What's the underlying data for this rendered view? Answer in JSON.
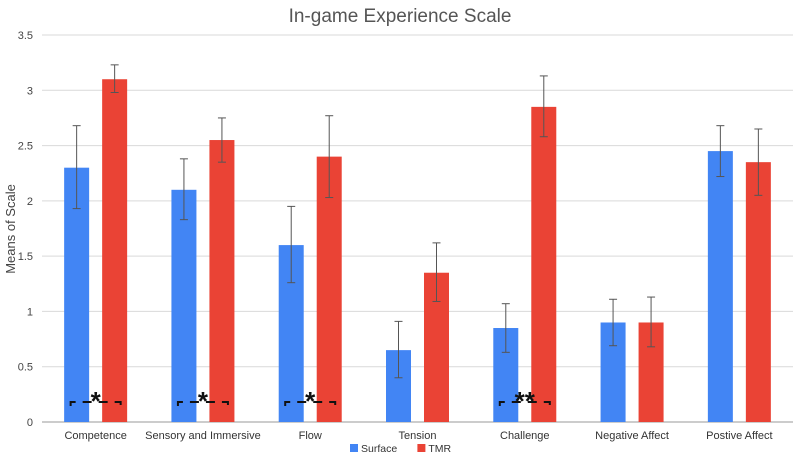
{
  "chart_data": {
    "type": "bar",
    "title": "In-game Experience Scale",
    "xlabel": "",
    "ylabel": "Means of Scale",
    "ylim": [
      0,
      3.5
    ],
    "yticks": [
      "0",
      "0.5",
      "1",
      "1.5",
      "2",
      "2.5",
      "3",
      "3.5"
    ],
    "grid": true,
    "legend_position": "bottom",
    "categories": [
      "Competence",
      "Sensory and Immersive",
      "Flow",
      "Tension",
      "Challenge",
      "Negative Affect",
      "Postive Affect"
    ],
    "series": [
      {
        "name": "Surface",
        "color": "#4285F4",
        "values": [
          2.3,
          2.1,
          1.6,
          0.65,
          0.85,
          0.9,
          2.45
        ],
        "error_low": [
          1.93,
          1.83,
          1.26,
          0.4,
          0.63,
          0.69,
          2.22
        ],
        "error_high": [
          2.68,
          2.38,
          1.95,
          0.91,
          1.07,
          1.11,
          2.68
        ]
      },
      {
        "name": "TMR",
        "color": "#EA4335",
        "values": [
          3.1,
          2.55,
          2.4,
          1.35,
          2.85,
          0.9,
          2.35
        ],
        "error_low": [
          2.98,
          2.35,
          2.03,
          1.09,
          2.58,
          0.68,
          2.05
        ],
        "error_high": [
          3.23,
          2.75,
          2.77,
          1.62,
          3.13,
          1.13,
          2.65
        ]
      }
    ],
    "annotations": [
      {
        "category_index": 0,
        "label": "*"
      },
      {
        "category_index": 1,
        "label": "*"
      },
      {
        "category_index": 2,
        "label": "*"
      },
      {
        "category_index": 4,
        "label": "**"
      }
    ]
  }
}
